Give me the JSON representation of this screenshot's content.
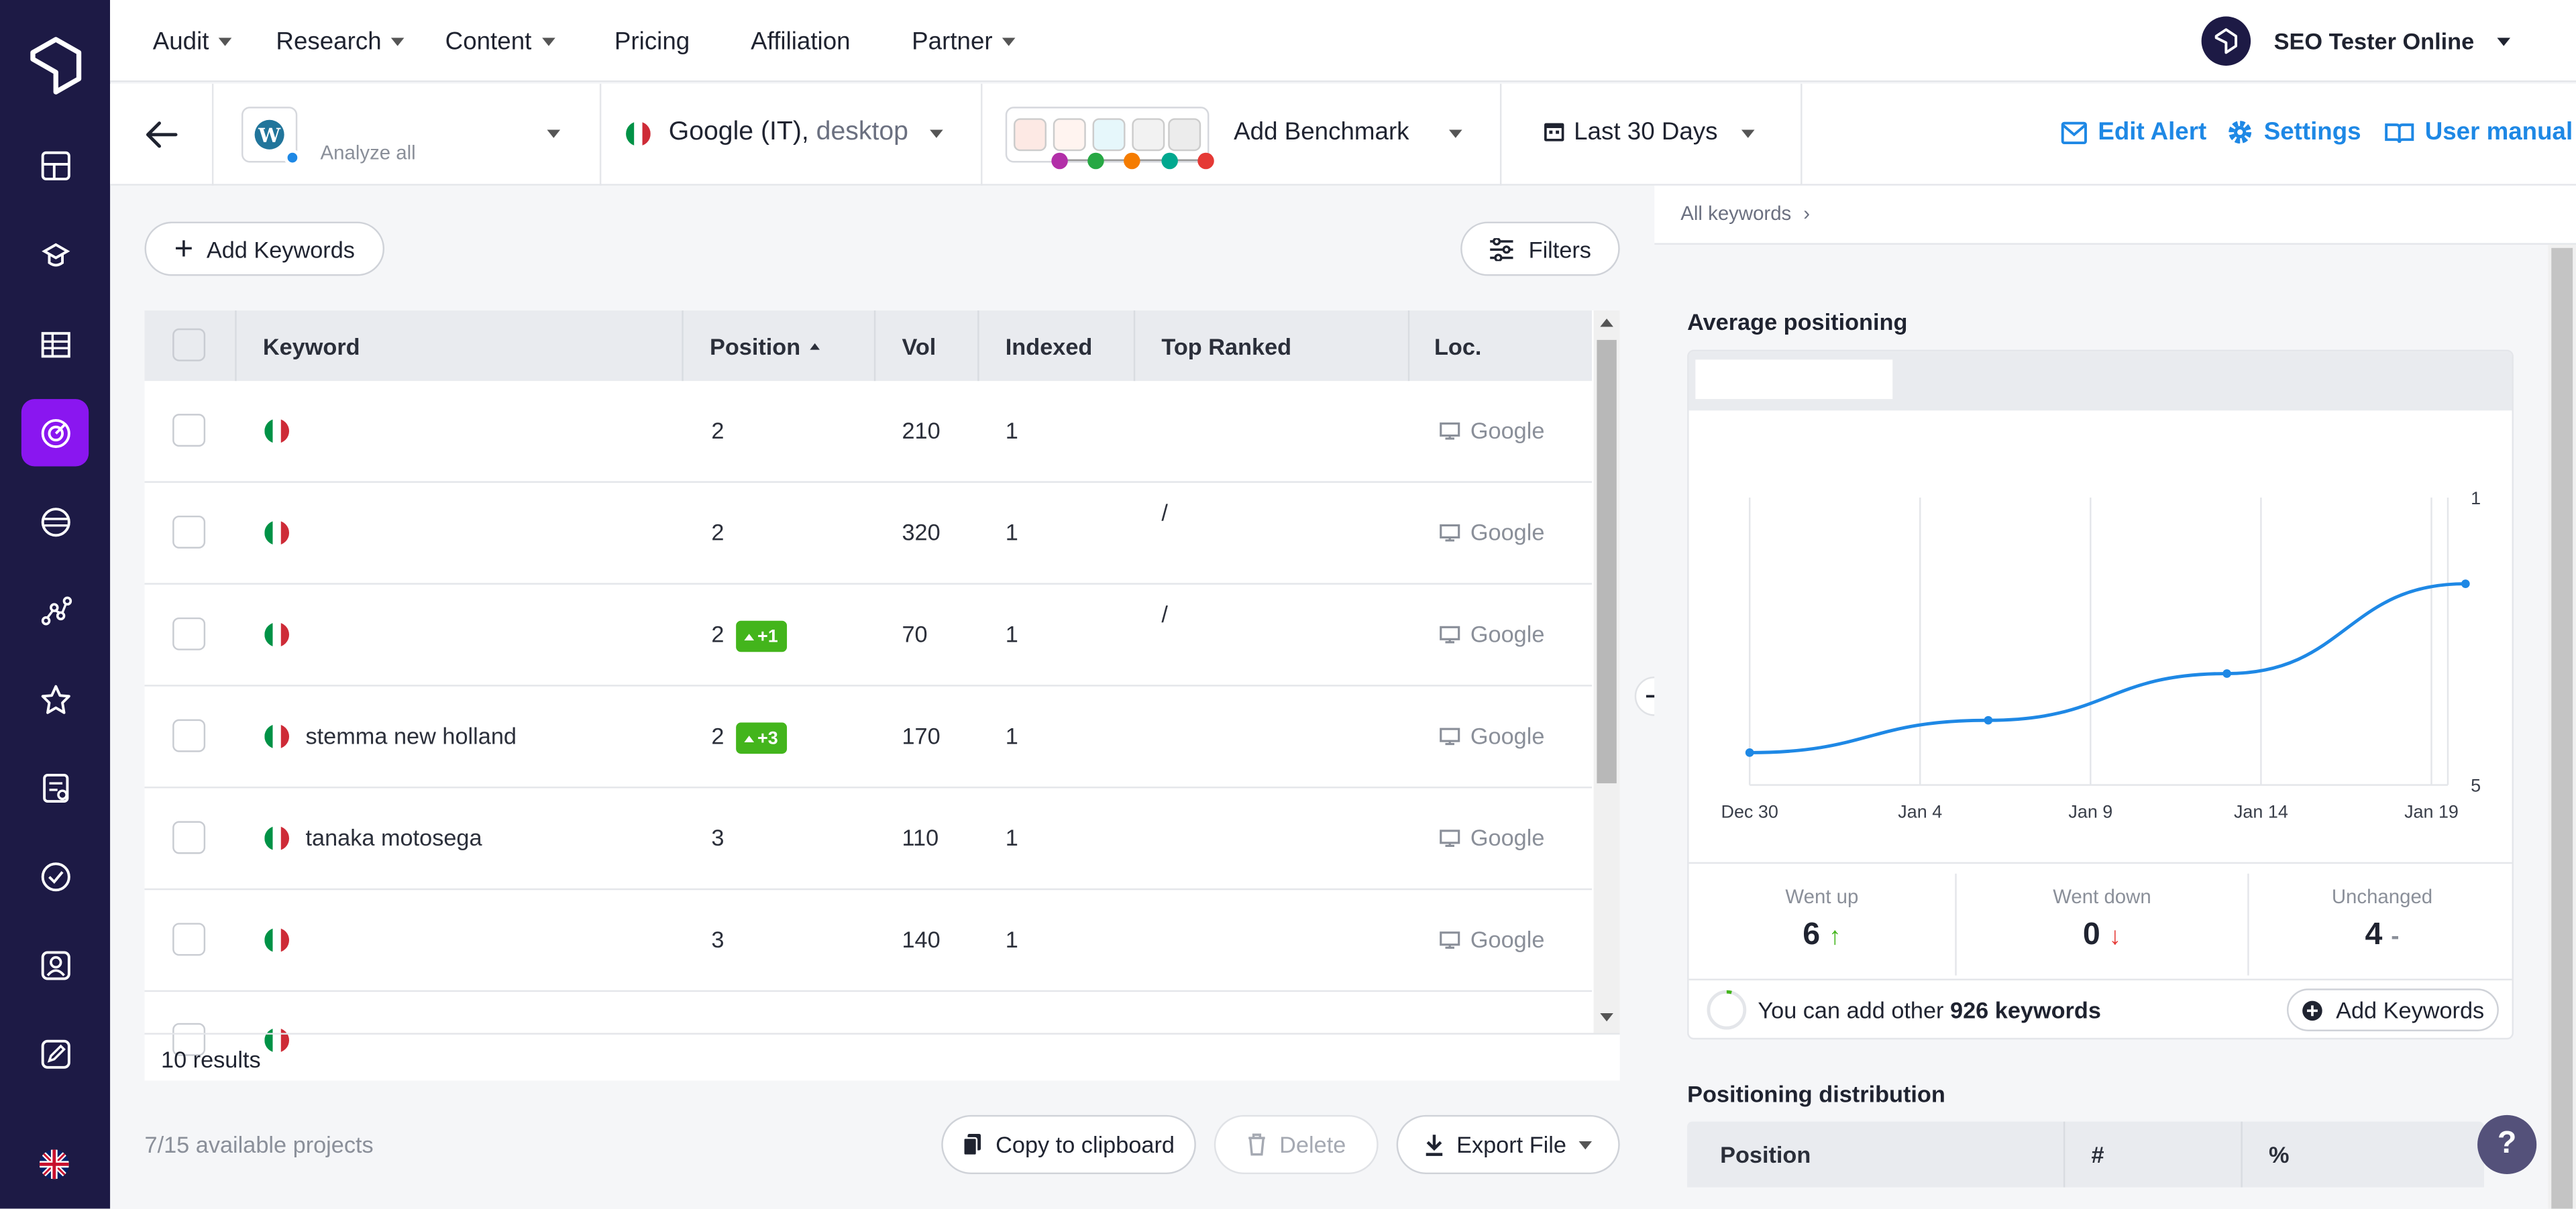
{
  "nav": {
    "items": [
      {
        "label": "Audit",
        "dropdown": true
      },
      {
        "label": "Research",
        "dropdown": true
      },
      {
        "label": "Content",
        "dropdown": true
      },
      {
        "label": "Pricing",
        "dropdown": false
      },
      {
        "label": "Affiliation",
        "dropdown": false
      },
      {
        "label": "Partner",
        "dropdown": true
      }
    ],
    "account": "SEO Tester Online"
  },
  "sidebar": {
    "icons": [
      "dashboard-icon",
      "audit-icon",
      "table-icon",
      "rank-tracker-icon",
      "content-icon",
      "graph-icon",
      "star-icon",
      "report-icon",
      "ai-icon",
      "profile-icon",
      "edit-icon"
    ],
    "active_index": 3,
    "language": "en"
  },
  "toolbar": {
    "analyze_label": "Analyze all",
    "search_engine": "Google (IT),",
    "device": "desktop",
    "benchmark_label": "Add Benchmark",
    "date_range": "Last 30 Days",
    "edit_alert": "Edit Alert",
    "settings": "Settings",
    "user_manual": "User manual"
  },
  "main": {
    "add_keywords": "Add Keywords",
    "filters": "Filters",
    "columns": [
      "Keyword",
      "Position",
      "Vol",
      "Indexed",
      "Top Ranked",
      "Loc."
    ],
    "rows": [
      {
        "keyword": "",
        "position": "2",
        "change": "",
        "vol": "210",
        "indexed": "1",
        "top_ranked": "",
        "loc": "Google"
      },
      {
        "keyword": "",
        "position": "2",
        "change": "",
        "vol": "320",
        "indexed": "1",
        "top_ranked": "/",
        "loc": "Google"
      },
      {
        "keyword": "",
        "position": "2",
        "change": "+1",
        "vol": "70",
        "indexed": "1",
        "top_ranked": "/",
        "loc": "Google"
      },
      {
        "keyword": "stemma new holland",
        "position": "2",
        "change": "+3",
        "vol": "170",
        "indexed": "1",
        "top_ranked": "",
        "loc": "Google"
      },
      {
        "keyword": "tanaka motosega",
        "position": "3",
        "change": "",
        "vol": "110",
        "indexed": "1",
        "top_ranked": "",
        "loc": "Google"
      },
      {
        "keyword": "",
        "position": "3",
        "change": "",
        "vol": "140",
        "indexed": "1",
        "top_ranked": "",
        "loc": "Google"
      }
    ],
    "results": "10 results",
    "projects": "7/15 available projects",
    "copy": "Copy to clipboard",
    "delete": "Delete",
    "export": "Export File"
  },
  "right": {
    "breadcrumb": "All keywords",
    "avg_title": "Average positioning",
    "stats": [
      {
        "label": "Went up",
        "value": "6",
        "arrow": "↑",
        "color": "#43b51c"
      },
      {
        "label": "Went down",
        "value": "0",
        "arrow": "↓",
        "color": "#e53935"
      },
      {
        "label": "Unchanged",
        "value": "4",
        "arrow": "-",
        "color": "#8a8f99"
      }
    ],
    "add_other_prefix": "You can add other",
    "add_other_count": "926 keywords",
    "add_keywords": "Add Keywords",
    "dist_title": "Positioning distribution",
    "dist_columns": [
      "Position",
      "#",
      "%"
    ],
    "help": "?"
  },
  "chart_data": {
    "type": "line",
    "x": [
      "Dec 30",
      "Jan 6",
      "Jan 13",
      "Jan 20"
    ],
    "x_ticks": [
      "Dec 30",
      "Jan 4",
      "Jan 9",
      "Jan 14",
      "Jan 19"
    ],
    "y_ticks": [
      "1",
      "5"
    ],
    "ylim": [
      1,
      5
    ],
    "y_inverted": true,
    "series": [
      {
        "values": [
          4.55,
          4.1,
          3.45,
          2.2
        ],
        "color": "#1e88e5"
      }
    ]
  },
  "colors": {
    "accent": "#1e88e5",
    "sidebar": "#1d1a45",
    "active": "#8a16f0",
    "up": "#43b51c",
    "down": "#e53935"
  }
}
